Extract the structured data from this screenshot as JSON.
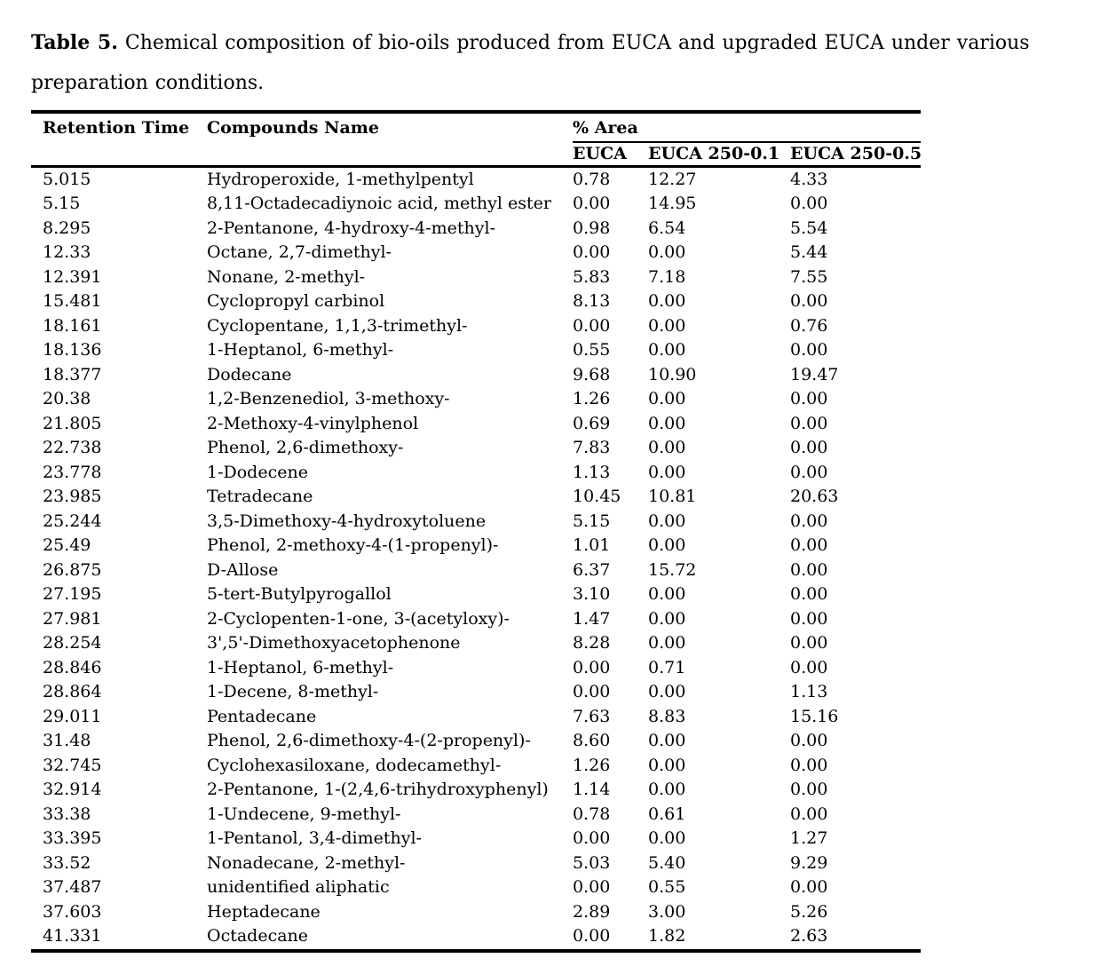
{
  "caption": {
    "label": "Table 5.",
    "line1": " Chemical composition of bio-oils produced from EUCA and upgraded EUCA under various",
    "line2": "preparation conditions."
  },
  "table": {
    "headers": {
      "retention_time": "Retention Time",
      "compounds_name": "Compounds Name",
      "area_group": "% Area",
      "sub_columns": [
        "EUCA",
        "EUCA 250-0.1",
        "EUCA 250-0.5"
      ]
    },
    "rows": [
      [
        "5.015",
        "Hydroperoxide, 1-methylpentyl",
        "0.78",
        "12.27",
        "4.33"
      ],
      [
        "5.15",
        "8,11-Octadecadiynoic acid, methyl ester",
        "0.00",
        "14.95",
        "0.00"
      ],
      [
        "8.295",
        "2-Pentanone, 4-hydroxy-4-methyl-",
        "0.98",
        "6.54",
        "5.54"
      ],
      [
        "12.33",
        "Octane, 2,7-dimethyl-",
        "0.00",
        "0.00",
        "5.44"
      ],
      [
        "12.391",
        "Nonane, 2-methyl-",
        "5.83",
        "7.18",
        "7.55"
      ],
      [
        "15.481",
        "Cyclopropyl carbinol",
        "8.13",
        "0.00",
        "0.00"
      ],
      [
        "18.161",
        "Cyclopentane, 1,1,3-trimethyl-",
        "0.00",
        "0.00",
        "0.76"
      ],
      [
        "18.136",
        "1-Heptanol, 6-methyl-",
        "0.55",
        "0.00",
        "0.00"
      ],
      [
        "18.377",
        "Dodecane",
        "9.68",
        "10.90",
        "19.47"
      ],
      [
        "20.38",
        "1,2-Benzenediol, 3-methoxy-",
        "1.26",
        "0.00",
        "0.00"
      ],
      [
        "21.805",
        "2-Methoxy-4-vinylphenol",
        "0.69",
        "0.00",
        "0.00"
      ],
      [
        "22.738",
        "Phenol, 2,6-dimethoxy-",
        "7.83",
        "0.00",
        "0.00"
      ],
      [
        "23.778",
        "1-Dodecene",
        "1.13",
        "0.00",
        "0.00"
      ],
      [
        "23.985",
        "Tetradecane",
        "10.45",
        "10.81",
        "20.63"
      ],
      [
        "25.244",
        "3,5-Dimethoxy-4-hydroxytoluene",
        "5.15",
        "0.00",
        "0.00"
      ],
      [
        "25.49",
        "Phenol, 2-methoxy-4-(1-propenyl)-",
        "1.01",
        "0.00",
        "0.00"
      ],
      [
        "26.875",
        "D-Allose",
        "6.37",
        "15.72",
        "0.00"
      ],
      [
        "27.195",
        "5-tert-Butylpyrogallol",
        "3.10",
        "0.00",
        "0.00"
      ],
      [
        "27.981",
        "2-Cyclopenten-1-one, 3-(acetyloxy)-",
        "1.47",
        "0.00",
        "0.00"
      ],
      [
        "28.254",
        "3',5'-Dimethoxyacetophenone",
        "8.28",
        "0.00",
        "0.00"
      ],
      [
        "28.846",
        "1-Heptanol, 6-methyl-",
        "0.00",
        "0.71",
        "0.00"
      ],
      [
        "28.864",
        "1-Decene, 8-methyl-",
        "0.00",
        "0.00",
        "1.13"
      ],
      [
        "29.011",
        "Pentadecane",
        "7.63",
        "8.83",
        "15.16"
      ],
      [
        "31.48",
        "Phenol, 2,6-dimethoxy-4-(2-propenyl)-",
        "8.60",
        "0.00",
        "0.00"
      ],
      [
        "32.745",
        "Cyclohexasiloxane, dodecamethyl-",
        "1.26",
        "0.00",
        "0.00"
      ],
      [
        "32.914",
        "2-Pentanone, 1-(2,4,6-trihydroxyphenyl)",
        "1.14",
        "0.00",
        "0.00"
      ],
      [
        "33.38",
        "1-Undecene, 9-methyl-",
        "0.78",
        "0.61",
        "0.00"
      ],
      [
        "33.395",
        "1-Pentanol, 3,4-dimethyl-",
        "0.00",
        "0.00",
        "1.27"
      ],
      [
        "33.52",
        "Nonadecane, 2-methyl-",
        "5.03",
        "5.40",
        "9.29"
      ],
      [
        "37.487",
        "unidentified aliphatic",
        "0.00",
        "0.55",
        "0.00"
      ],
      [
        "37.603",
        "Heptadecane",
        "2.89",
        "3.00",
        "5.26"
      ],
      [
        "41.331",
        "Octadecane",
        "0.00",
        "1.82",
        "2.63"
      ]
    ]
  },
  "colors": {
    "text": "#000000",
    "background": "#ffffff",
    "rule": "#000000"
  }
}
